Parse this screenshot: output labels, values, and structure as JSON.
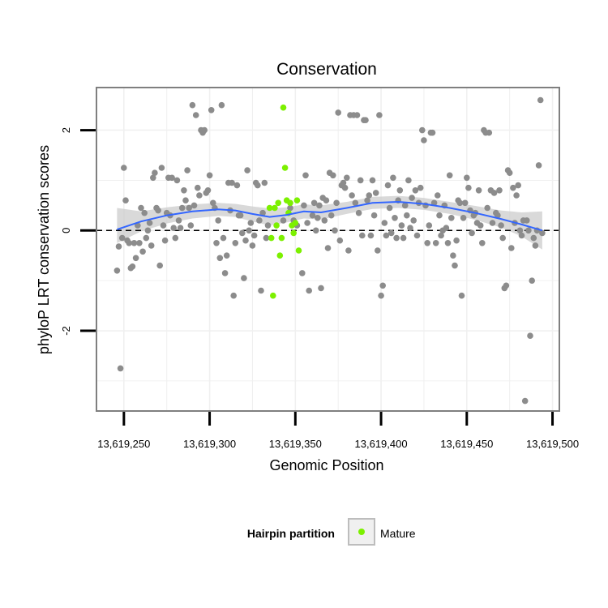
{
  "chart_data": {
    "type": "scatter",
    "title": "Conservation",
    "xlabel": "Genomic Position",
    "ylabel": "phyloP LRT conservation scores",
    "xlim": [
      13619234,
      13619504
    ],
    "ylim": [
      -3.6,
      2.85
    ],
    "x_ticks": [
      13619250,
      13619300,
      13619350,
      13619400,
      13619450,
      13619500
    ],
    "x_tick_labels": [
      "13,619,250",
      "13,619,300",
      "13,619,350",
      "13,619,400",
      "13,619,450",
      "13,619,500"
    ],
    "y_ticks": [
      -2,
      0,
      2
    ],
    "y_tick_labels": [
      "-2",
      "0",
      "2"
    ],
    "y_minor_gridlines": [
      -3,
      -1,
      1
    ],
    "x_minor_gridlines": [
      13619275,
      13619325,
      13619375,
      13619425,
      13619475
    ],
    "reference_line": {
      "y": 0,
      "style": "dashed"
    },
    "grid": true,
    "colors": {
      "panel_background": "#ffffff",
      "panel_border": "#7f7f7f",
      "grid": "#f0f0f0",
      "point_default": "#8c8c8c",
      "point_mature": "#7cf000",
      "smooth_line": "#3366ff",
      "confidence_band": "#cccccc"
    },
    "legend": {
      "title": "Hairpin partition",
      "placement": "bottom",
      "entries": [
        {
          "label": "Mature",
          "color": "#7cf000"
        }
      ]
    },
    "series": [
      {
        "key": "other",
        "points": [
          [
            13619246,
            -0.8
          ],
          [
            13619247,
            -0.32
          ],
          [
            13619248,
            -2.75
          ],
          [
            13619249,
            -0.15
          ],
          [
            13619250,
            1.25
          ],
          [
            13619251,
            0.6
          ],
          [
            13619252,
            -0.2
          ],
          [
            13619253,
            -0.25
          ],
          [
            13619254,
            -0.75
          ],
          [
            13619255,
            -0.72
          ],
          [
            13619256,
            -0.25
          ],
          [
            13619257,
            -0.55
          ],
          [
            13619258,
            0.1
          ],
          [
            13619259,
            -0.25
          ],
          [
            13619260,
            0.45
          ],
          [
            13619261,
            -0.42
          ],
          [
            13619262,
            0.35
          ],
          [
            13619263,
            -0.15
          ],
          [
            13619264,
            0.0
          ],
          [
            13619265,
            0.15
          ],
          [
            13619266,
            -0.3
          ],
          [
            13619267,
            1.05
          ],
          [
            13619268,
            1.15
          ],
          [
            13619269,
            0.45
          ],
          [
            13619270,
            0.4
          ],
          [
            13619271,
            -0.7
          ],
          [
            13619272,
            1.25
          ],
          [
            13619273,
            0.1
          ],
          [
            13619274,
            -0.2
          ],
          [
            13619275,
            0.35
          ],
          [
            13619276,
            1.05
          ],
          [
            13619277,
            0.3
          ],
          [
            13619278,
            1.05
          ],
          [
            13619279,
            0.05
          ],
          [
            13619280,
            -0.15
          ],
          [
            13619281,
            1.0
          ],
          [
            13619282,
            0.2
          ],
          [
            13619283,
            0.05
          ],
          [
            13619284,
            0.45
          ],
          [
            13619285,
            0.8
          ],
          [
            13619286,
            0.6
          ],
          [
            13619287,
            1.2
          ],
          [
            13619288,
            0.45
          ],
          [
            13619289,
            0.1
          ],
          [
            13619290,
            2.5
          ],
          [
            13619291,
            0.5
          ],
          [
            13619292,
            2.3
          ],
          [
            13619293,
            0.85
          ],
          [
            13619294,
            0.7
          ],
          [
            13619295,
            2.0
          ],
          [
            13619296,
            1.95
          ],
          [
            13619297,
            2.0
          ],
          [
            13619298,
            0.75
          ],
          [
            13619299,
            0.8
          ],
          [
            13619300,
            1.1
          ],
          [
            13619301,
            2.4
          ],
          [
            13619302,
            0.55
          ],
          [
            13619303,
            0.45
          ],
          [
            13619304,
            -0.25
          ],
          [
            13619305,
            0.2
          ],
          [
            13619306,
            -0.55
          ],
          [
            13619307,
            2.5
          ],
          [
            13619308,
            -0.15
          ],
          [
            13619309,
            -0.85
          ],
          [
            13619310,
            -0.5
          ],
          [
            13619311,
            0.95
          ],
          [
            13619312,
            0.4
          ],
          [
            13619313,
            0.95
          ],
          [
            13619314,
            -1.3
          ],
          [
            13619315,
            -0.25
          ],
          [
            13619316,
            0.9
          ],
          [
            13619317,
            0.3
          ],
          [
            13619318,
            0.3
          ],
          [
            13619319,
            -0.05
          ],
          [
            13619320,
            -0.95
          ],
          [
            13619321,
            -0.2
          ],
          [
            13619322,
            1.2
          ],
          [
            13619323,
            0.0
          ],
          [
            13619324,
            0.15
          ],
          [
            13619325,
            -0.3
          ],
          [
            13619326,
            -0.1
          ],
          [
            13619327,
            0.95
          ],
          [
            13619328,
            0.9
          ],
          [
            13619329,
            0.2
          ],
          [
            13619330,
            -1.2
          ],
          [
            13619331,
            0.35
          ],
          [
            13619332,
            0.95
          ],
          [
            13619333,
            -0.15
          ],
          [
            13619334,
            0.1
          ],
          [
            13619343,
            0.2
          ],
          [
            13619347,
            0.45
          ],
          [
            13619349,
            0.2
          ],
          [
            13619351,
            0.1
          ],
          [
            13619354,
            -0.85
          ],
          [
            13619355,
            0.5
          ],
          [
            13619356,
            1.1
          ],
          [
            13619357,
            0.15
          ],
          [
            13619358,
            -1.2
          ],
          [
            13619360,
            0.3
          ],
          [
            13619361,
            0.55
          ],
          [
            13619362,
            0.0
          ],
          [
            13619363,
            0.25
          ],
          [
            13619364,
            0.5
          ],
          [
            13619365,
            -1.15
          ],
          [
            13619366,
            0.65
          ],
          [
            13619367,
            0.2
          ],
          [
            13619368,
            0.6
          ],
          [
            13619369,
            -0.35
          ],
          [
            13619370,
            1.15
          ],
          [
            13619371,
            0.3
          ],
          [
            13619372,
            1.1
          ],
          [
            13619373,
            0.0
          ],
          [
            13619374,
            0.55
          ],
          [
            13619375,
            2.35
          ],
          [
            13619376,
            -0.2
          ],
          [
            13619377,
            0.9
          ],
          [
            13619378,
            0.95
          ],
          [
            13619379,
            0.85
          ],
          [
            13619380,
            1.05
          ],
          [
            13619381,
            -0.4
          ],
          [
            13619382,
            2.3
          ],
          [
            13619383,
            0.7
          ],
          [
            13619384,
            2.3
          ],
          [
            13619385,
            0.55
          ],
          [
            13619386,
            2.3
          ],
          [
            13619387,
            0.35
          ],
          [
            13619388,
            1.0
          ],
          [
            13619389,
            -0.1
          ],
          [
            13619390,
            2.2
          ],
          [
            13619391,
            2.2
          ],
          [
            13619392,
            0.6
          ],
          [
            13619393,
            0.7
          ],
          [
            13619394,
            -0.1
          ],
          [
            13619395,
            1.0
          ],
          [
            13619396,
            0.3
          ],
          [
            13619397,
            0.75
          ],
          [
            13619398,
            -0.4
          ],
          [
            13619399,
            2.3
          ],
          [
            13619400,
            -1.3
          ],
          [
            13619401,
            -1.1
          ],
          [
            13619402,
            0.15
          ],
          [
            13619403,
            -0.1
          ],
          [
            13619404,
            0.9
          ],
          [
            13619405,
            0.45
          ],
          [
            13619406,
            -0.05
          ],
          [
            13619407,
            1.05
          ],
          [
            13619408,
            0.25
          ],
          [
            13619409,
            -0.15
          ],
          [
            13619410,
            0.6
          ],
          [
            13619411,
            0.8
          ],
          [
            13619412,
            0.1
          ],
          [
            13619413,
            -0.15
          ],
          [
            13619414,
            0.5
          ],
          [
            13619415,
            0.3
          ],
          [
            13619416,
            1.0
          ],
          [
            13619417,
            0.05
          ],
          [
            13619418,
            0.65
          ],
          [
            13619419,
            0.2
          ],
          [
            13619420,
            0.8
          ],
          [
            13619421,
            -0.1
          ],
          [
            13619422,
            0.55
          ],
          [
            13619423,
            0.85
          ],
          [
            13619424,
            2.0
          ],
          [
            13619425,
            1.8
          ],
          [
            13619426,
            0.5
          ],
          [
            13619427,
            -0.25
          ],
          [
            13619428,
            0.1
          ],
          [
            13619429,
            1.95
          ],
          [
            13619430,
            1.95
          ],
          [
            13619431,
            0.55
          ],
          [
            13619432,
            -0.25
          ],
          [
            13619433,
            0.7
          ],
          [
            13619434,
            0.3
          ],
          [
            13619435,
            -0.1
          ],
          [
            13619436,
            0.0
          ],
          [
            13619437,
            0.5
          ],
          [
            13619438,
            0.05
          ],
          [
            13619439,
            -0.25
          ],
          [
            13619440,
            1.1
          ],
          [
            13619441,
            0.25
          ],
          [
            13619442,
            -0.5
          ],
          [
            13619443,
            -0.7
          ],
          [
            13619444,
            -0.2
          ],
          [
            13619445,
            0.6
          ],
          [
            13619446,
            0.55
          ],
          [
            13619447,
            -1.3
          ],
          [
            13619448,
            0.25
          ],
          [
            13619449,
            0.55
          ],
          [
            13619450,
            1.05
          ],
          [
            13619451,
            0.85
          ],
          [
            13619452,
            0.4
          ],
          [
            13619453,
            -0.05
          ],
          [
            13619454,
            0.3
          ],
          [
            13619455,
            0.35
          ],
          [
            13619456,
            0.15
          ],
          [
            13619457,
            0.8
          ],
          [
            13619458,
            0.1
          ],
          [
            13619459,
            -0.25
          ],
          [
            13619460,
            2.0
          ],
          [
            13619461,
            1.95
          ],
          [
            13619462,
            0.45
          ],
          [
            13619463,
            1.95
          ],
          [
            13619464,
            0.8
          ],
          [
            13619465,
            0.15
          ],
          [
            13619466,
            0.75
          ],
          [
            13619467,
            0.35
          ],
          [
            13619468,
            0.3
          ],
          [
            13619469,
            0.8
          ],
          [
            13619470,
            0.1
          ],
          [
            13619471,
            -0.15
          ],
          [
            13619472,
            -1.15
          ],
          [
            13619473,
            -1.1
          ],
          [
            13619474,
            1.2
          ],
          [
            13619475,
            1.15
          ],
          [
            13619476,
            -0.35
          ],
          [
            13619477,
            0.85
          ],
          [
            13619478,
            0.15
          ],
          [
            13619479,
            0.7
          ],
          [
            13619480,
            0.9
          ],
          [
            13619481,
            0.0
          ],
          [
            13619482,
            -0.1
          ],
          [
            13619483,
            0.2
          ],
          [
            13619484,
            -3.4
          ],
          [
            13619485,
            0.2
          ],
          [
            13619486,
            0.0
          ],
          [
            13619487,
            -2.1
          ],
          [
            13619488,
            -1.0
          ],
          [
            13619489,
            -0.15
          ],
          [
            13619490,
            -0.3
          ],
          [
            13619491,
            0.0
          ],
          [
            13619492,
            1.3
          ],
          [
            13619493,
            2.6
          ],
          [
            13619494,
            -0.05
          ]
        ]
      },
      {
        "key": "mature",
        "name": "Mature",
        "points": [
          [
            13619335,
            0.45
          ],
          [
            13619336,
            -0.15
          ],
          [
            13619337,
            -1.3
          ],
          [
            13619338,
            0.45
          ],
          [
            13619339,
            0.1
          ],
          [
            13619340,
            0.55
          ],
          [
            13619341,
            -0.5
          ],
          [
            13619342,
            -0.15
          ],
          [
            13619343,
            2.45
          ],
          [
            13619344,
            1.25
          ],
          [
            13619345,
            0.6
          ],
          [
            13619346,
            0.35
          ],
          [
            13619347,
            0.55
          ],
          [
            13619348,
            0.1
          ],
          [
            13619349,
            -0.05
          ],
          [
            13619350,
            0.15
          ],
          [
            13619351,
            0.6
          ],
          [
            13619352,
            -0.4
          ]
        ]
      }
    ],
    "smooth": {
      "x": [
        13619246,
        13619260,
        13619275,
        13619290,
        13619305,
        13619315,
        13619325,
        13619335,
        13619345,
        13619355,
        13619365,
        13619380,
        13619395,
        13619410,
        13619425,
        13619440,
        13619455,
        13619470,
        13619482,
        13619494
      ],
      "y": [
        0.02,
        0.18,
        0.3,
        0.38,
        0.42,
        0.4,
        0.33,
        0.27,
        0.31,
        0.38,
        0.36,
        0.45,
        0.55,
        0.57,
        0.53,
        0.45,
        0.35,
        0.23,
        0.12,
        0.0
      ],
      "lo": [
        -0.25,
        -0.02,
        0.14,
        0.24,
        0.29,
        0.27,
        0.18,
        0.1,
        0.16,
        0.24,
        0.22,
        0.33,
        0.43,
        0.45,
        0.41,
        0.33,
        0.21,
        0.06,
        -0.12,
        -0.38
      ],
      "hi": [
        0.45,
        0.38,
        0.46,
        0.52,
        0.55,
        0.53,
        0.48,
        0.44,
        0.46,
        0.52,
        0.5,
        0.57,
        0.67,
        0.69,
        0.65,
        0.57,
        0.49,
        0.4,
        0.36,
        0.38
      ]
    }
  }
}
